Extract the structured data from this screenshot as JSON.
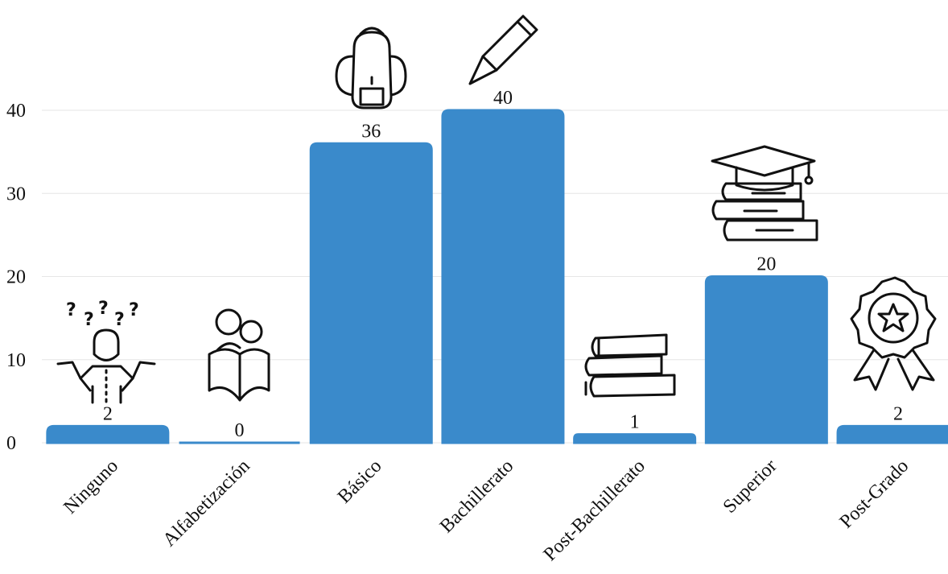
{
  "chart_data": {
    "type": "bar",
    "categories": [
      "Ninguno",
      "Alfabetización",
      "Básico",
      "Bachillerato",
      "Post-Bachillerato",
      "Superior",
      "Post-Grado"
    ],
    "values": [
      2,
      0,
      36,
      40,
      1,
      20,
      2
    ],
    "color": "#3a8acb",
    "ylim": [
      0,
      40
    ],
    "yticks": [
      0,
      10,
      20,
      30,
      40
    ],
    "grid": true
  }
}
